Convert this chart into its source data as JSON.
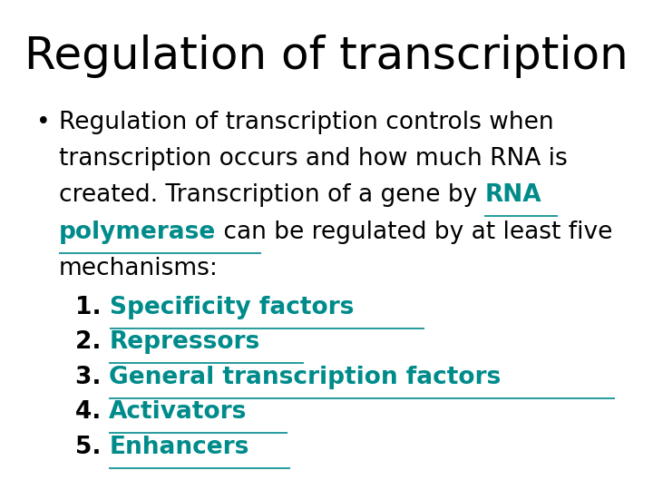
{
  "title": "Regulation of transcription",
  "title_fontsize": 36,
  "title_color": "#000000",
  "background_color": "#ffffff",
  "bullet_text_color": "#000000",
  "link_color": "#008B8B",
  "body_fontsize": 19,
  "bullet": "•",
  "bullet_line1": "Regulation of transcription controls when",
  "bullet_line2": "transcription occurs and how much RNA is",
  "bullet_line3_before_link": "created. Transcription of a gene by ",
  "bullet_link1": "RNA",
  "bullet_line4_link2": "polymerase",
  "bullet_line4_after": " can be regulated by at least five",
  "bullet_line5": "mechanisms:",
  "numbered_items": [
    "Specificity factors",
    "Repressors",
    "General transcription factors",
    "Activators",
    "Enhancers"
  ],
  "numbered_fontsize": 19
}
